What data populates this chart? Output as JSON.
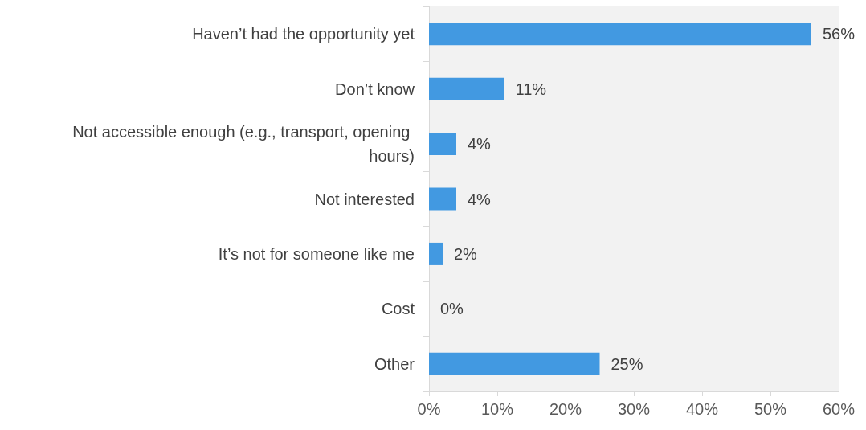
{
  "chart_data": {
    "type": "bar",
    "orientation": "horizontal",
    "categories": [
      "Haven’t had the opportunity yet",
      "Don’t know",
      "Not accessible enough (e.g., transport, opening hours)",
      "Not interested",
      "It’s not for someone like me",
      "Cost",
      "Other"
    ],
    "values": [
      56,
      11,
      4,
      4,
      2,
      0,
      25
    ],
    "value_labels": [
      "56%",
      "11%",
      "4%",
      "4%",
      "2%",
      "0%",
      "25%"
    ],
    "color": "#4299e1",
    "xlim": [
      0,
      60
    ],
    "xticks": [
      {
        "value": 0,
        "label": "0%"
      },
      {
        "value": 10,
        "label": "10%"
      },
      {
        "value": 20,
        "label": "20%"
      },
      {
        "value": 30,
        "label": "30%"
      },
      {
        "value": 40,
        "label": "40%"
      },
      {
        "value": 50,
        "label": "50%"
      },
      {
        "value": 60,
        "label": "60%"
      }
    ],
    "grid": false
  }
}
